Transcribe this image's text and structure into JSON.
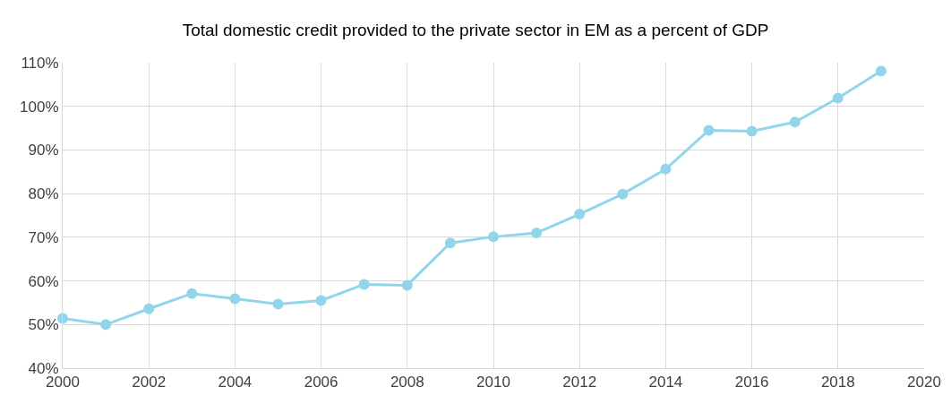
{
  "chart_data": {
    "type": "line",
    "title": "Total domestic credit provided to the private sector in EM as a percent of GDP",
    "x": [
      2000,
      2001,
      2002,
      2003,
      2004,
      2005,
      2006,
      2007,
      2008,
      2009,
      2010,
      2011,
      2012,
      2013,
      2014,
      2015,
      2016,
      2017,
      2018,
      2019
    ],
    "series": [
      {
        "color": "#92d5ea",
        "values": [
          51.4,
          50.0,
          53.6,
          57.1,
          55.9,
          54.7,
          55.5,
          59.2,
          59.0,
          68.7,
          70.1,
          71.0,
          75.3,
          79.9,
          85.6,
          94.5,
          94.3,
          96.4,
          101.9,
          108.1
        ]
      }
    ],
    "xlim": [
      2000,
      2020
    ],
    "xticks": [
      2000,
      2002,
      2004,
      2006,
      2008,
      2010,
      2012,
      2014,
      2016,
      2018,
      2020
    ],
    "ylim": [
      40,
      110
    ],
    "yticks": [
      {
        "value": 40,
        "label": "40%"
      },
      {
        "value": 50,
        "label": "50%"
      },
      {
        "value": 60,
        "label": "60%"
      },
      {
        "value": 70,
        "label": "70%"
      },
      {
        "value": 80,
        "label": "80%"
      },
      {
        "value": 90,
        "label": "90%"
      },
      {
        "value": 100,
        "label": "100%"
      },
      {
        "value": 110,
        "label": "110%"
      }
    ],
    "grid": true,
    "marker": "circle",
    "line_style": "solid",
    "legend": false
  }
}
